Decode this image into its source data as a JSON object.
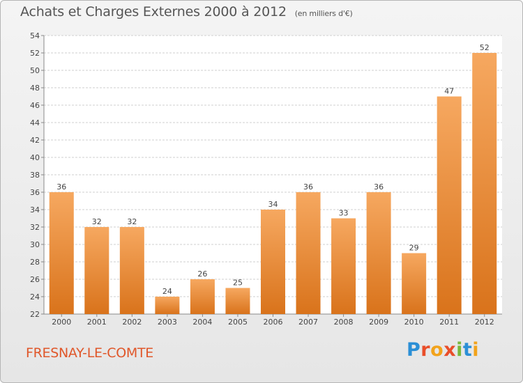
{
  "header": {
    "title": "Achats et Charges Externes 2000 à 2012",
    "subtitle": "(en milliers d'€)"
  },
  "footer": {
    "commune": "FRESNAY-LE-COMTE",
    "logo_letters": [
      {
        "ch": "P",
        "color": "#2b8fd6"
      },
      {
        "ch": "r",
        "color": "#e94e2a"
      },
      {
        "ch": "o",
        "color": "#f2a31b"
      },
      {
        "ch": "x",
        "color": "#e94e2a"
      },
      {
        "ch": "i",
        "color": "#79b83b"
      },
      {
        "ch": "t",
        "color": "#2b8fd6"
      },
      {
        "ch": "i",
        "color": "#f2a31b"
      }
    ]
  },
  "colors": {
    "bar_light": "#f6a860",
    "bar_dark": "#d9731b",
    "grid": "#cfcfcf",
    "axis_text": "#444444",
    "commune": "#e0572a"
  },
  "chart_data": {
    "type": "bar",
    "categories": [
      "2000",
      "2001",
      "2002",
      "2003",
      "2004",
      "2005",
      "2006",
      "2007",
      "2008",
      "2009",
      "2010",
      "2011",
      "2012"
    ],
    "values": [
      36,
      32,
      32,
      24,
      26,
      25,
      34,
      36,
      33,
      36,
      29,
      47,
      52
    ],
    "data_labels": [
      "36",
      "32",
      "32",
      "24",
      "26",
      "25",
      "34",
      "36",
      "33",
      "36",
      "29",
      "47",
      "52"
    ],
    "ylim": [
      22,
      54
    ],
    "yticks": [
      "22",
      "24",
      "26",
      "28",
      "30",
      "32",
      "34",
      "36",
      "38",
      "40",
      "42",
      "44",
      "46",
      "48",
      "50",
      "52",
      "54"
    ],
    "grid": true,
    "xlabel": "",
    "ylabel": ""
  }
}
